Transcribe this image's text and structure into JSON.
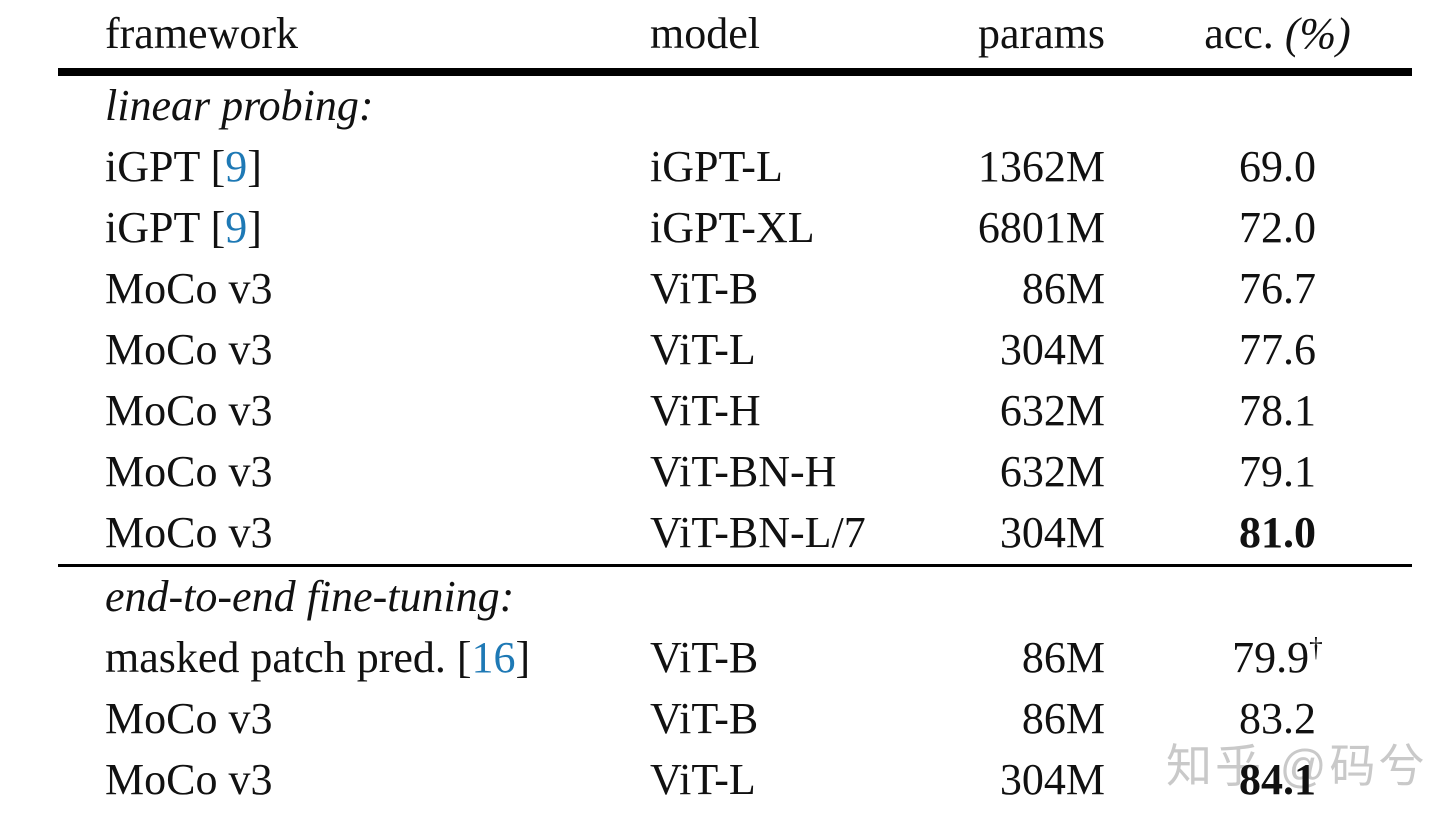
{
  "colors": {
    "background": "#ffffff",
    "text": "#111111",
    "citation_blue": "#1e79b5",
    "rule_black": "#000000",
    "watermark_gray": "#c9c9c9"
  },
  "watermark": {
    "text": "知乎 @码兮"
  },
  "table": {
    "headers": [
      {
        "label": "framework"
      },
      {
        "label": "model"
      },
      {
        "label": "params"
      },
      {
        "label": "acc. ",
        "label_italic": "(%)"
      }
    ],
    "sections": [
      {
        "label": "linear probing:",
        "rows": [
          {
            "framework": "iGPT",
            "cite": "9",
            "model": "iGPT-L",
            "params": "1362M",
            "acc": "69.0"
          },
          {
            "framework": "iGPT",
            "cite": "9",
            "model": "iGPT-XL",
            "params": "6801M",
            "acc": "72.0"
          },
          {
            "framework": "MoCo v3",
            "model": "ViT-B",
            "params": "86M",
            "acc": "76.7"
          },
          {
            "framework": "MoCo v3",
            "model": "ViT-L",
            "params": "304M",
            "acc": "77.6"
          },
          {
            "framework": "MoCo v3",
            "model": "ViT-H",
            "params": "632M",
            "acc": "78.1"
          },
          {
            "framework": "MoCo v3",
            "model": "ViT-BN-H",
            "params": "632M",
            "acc": "79.1"
          },
          {
            "framework": "MoCo v3",
            "model": "ViT-BN-L/7",
            "params": "304M",
            "acc": "81.0",
            "acc_bold": true
          }
        ]
      },
      {
        "label": "end-to-end fine-tuning:",
        "rows": [
          {
            "framework": "masked patch pred.",
            "cite": "16",
            "model": "ViT-B",
            "params": "86M",
            "acc": "79.9",
            "acc_sup": "†"
          },
          {
            "framework": "MoCo v3",
            "model": "ViT-B",
            "params": "86M",
            "acc": "83.2"
          },
          {
            "framework": "MoCo v3",
            "model": "ViT-L",
            "params": "304M",
            "acc": "84.1",
            "acc_bold": true
          }
        ]
      }
    ]
  }
}
